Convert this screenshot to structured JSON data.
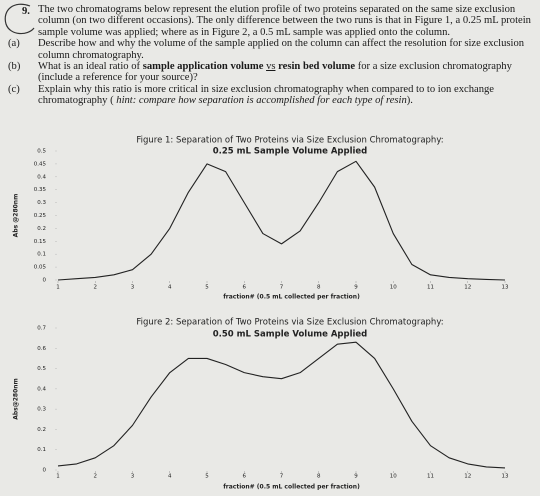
{
  "question": {
    "number": "9.",
    "intro": "The two chromatograms below represent the elution profile of two proteins separated on the same size exclusion column (on two different occasions). The only difference between the two runs is that in Figure 1, a 0.25 mL protein sample volume was applied; where as in Figure 2, a 0.5 mL sample was applied onto the column.",
    "parts": [
      {
        "label": "(a)",
        "segments": [
          {
            "text": "Describe how and why the volume of the sample applied on the column can affect the resolution for size exclusion column chromatography."
          }
        ]
      },
      {
        "label": "(b)",
        "segments": [
          {
            "text": "What is an ideal ratio of "
          },
          {
            "text": "sample application volume",
            "style": "bold"
          },
          {
            "text": "vs",
            "style": "underline"
          },
          {
            "text": "resin bed volume",
            "style": "bold"
          },
          {
            "text": "for a size exclusion chromatography (include a reference for your source)?"
          }
        ]
      },
      {
        "label": "(c)",
        "segments": [
          {
            "text": "Explain why this ratio is more critical in size exclusion chromatography when compared to to ion exchange chromatography ("
          },
          {
            "text": "hint: compare how separation is accomplished for each type of resin",
            "style": "italic"
          },
          {
            "text": ")."
          }
        ]
      }
    ]
  },
  "chart_data": [
    {
      "type": "line",
      "title": "Figure 1: Separation of Two Proteins via Size Exclusion Chromatography:",
      "subtitle": "0.25 mL Sample Volume Applied",
      "y_label": "Abs @280nm",
      "x_label": "fraction# (0.5 mL collected per fraction)",
      "x": [
        1,
        1.5,
        2,
        2.5,
        3,
        3.5,
        4,
        4.5,
        5,
        5.5,
        6,
        6.5,
        7,
        7.5,
        8,
        8.5,
        9,
        9.5,
        10,
        10.5,
        11,
        11.5,
        12,
        12.5,
        13
      ],
      "values": [
        0,
        0.005,
        0.01,
        0.02,
        0.04,
        0.1,
        0.2,
        0.34,
        0.45,
        0.42,
        0.3,
        0.18,
        0.14,
        0.19,
        0.3,
        0.42,
        0.46,
        0.36,
        0.18,
        0.06,
        0.02,
        0.01,
        0.005,
        0.002,
        0
      ],
      "color": "#222222",
      "xlim": [
        1,
        13
      ],
      "xticks": [
        1,
        2,
        3,
        4,
        5,
        6,
        7,
        8,
        9,
        10,
        11,
        12,
        13
      ],
      "ylim": [
        0,
        0.5
      ],
      "yticks": [
        0,
        0.05,
        0.1,
        0.15,
        0.2,
        0.25,
        0.3,
        0.35,
        0.4,
        0.45,
        0.5
      ]
    },
    {
      "type": "line",
      "title": "Figure 2: Separation of Two Proteins via Size Exclusion Chromatography:",
      "subtitle": "0.50 mL Sample Volume Applied",
      "y_label": "Abs@280nm",
      "x_label": "fraction# (0.5 mL collected per fraction)",
      "x": [
        1,
        1.5,
        2,
        2.5,
        3,
        3.5,
        4,
        4.5,
        5,
        5.5,
        6,
        6.5,
        7,
        7.5,
        8,
        8.5,
        9,
        9.5,
        10,
        10.5,
        11,
        11.5,
        12,
        12.5,
        13
      ],
      "values": [
        0.02,
        0.03,
        0.06,
        0.12,
        0.22,
        0.36,
        0.48,
        0.55,
        0.55,
        0.52,
        0.48,
        0.46,
        0.45,
        0.48,
        0.55,
        0.62,
        0.63,
        0.55,
        0.4,
        0.24,
        0.12,
        0.06,
        0.03,
        0.015,
        0.01
      ],
      "color": "#222222",
      "xlim": [
        1,
        13
      ],
      "xticks": [
        1,
        2,
        3,
        4,
        5,
        6,
        7,
        8,
        9,
        10,
        11,
        12,
        13
      ],
      "ylim": [
        0,
        0.7
      ],
      "yticks": [
        0,
        0.1,
        0.2,
        0.3,
        0.4,
        0.5,
        0.6,
        0.7
      ]
    }
  ]
}
